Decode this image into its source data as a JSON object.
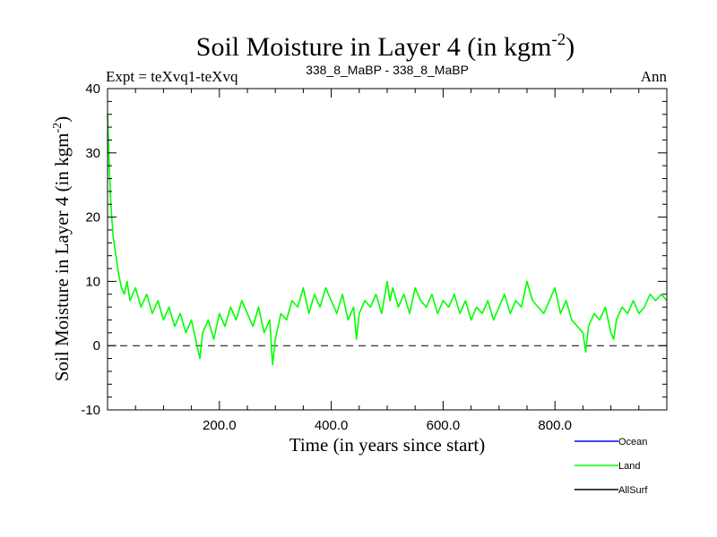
{
  "chart_data": {
    "type": "line",
    "title": "Soil Moisture in Layer 4 (in kgm",
    "title_sup": "-2",
    "title_close": ")",
    "subtitle_left": "Expt = teXvq1-teXvq",
    "subtitle_center": "338_8_MaBP - 338_8_MaBP",
    "subtitle_right": "Ann",
    "xlabel": "Time (in years since start)",
    "ylabel": "Soil Moisture in Layer 4 (in kgm",
    "ylabel_sup": "-2",
    "ylabel_close": ")",
    "xlim": [
      0,
      1000
    ],
    "ylim": [
      -10,
      40
    ],
    "x_ticks": [
      200,
      400,
      600,
      800
    ],
    "x_tick_labels": [
      "200.0",
      "400.0",
      "600.0",
      "800.0"
    ],
    "y_ticks": [
      -10,
      0,
      10,
      20,
      30,
      40
    ],
    "y_tick_labels": [
      "-10",
      "0",
      "10",
      "20",
      "30",
      "40"
    ],
    "zero_line": 0,
    "legend": [
      {
        "name": "Ocean",
        "color": "#0000ff"
      },
      {
        "name": "Land",
        "color": "#00ff00"
      },
      {
        "name": "AllSurf",
        "color": "#000000"
      }
    ],
    "series": [
      {
        "name": "Land",
        "color": "#00ff00",
        "x": [
          0,
          3,
          6,
          10,
          15,
          20,
          25,
          30,
          35,
          40,
          50,
          60,
          70,
          80,
          90,
          100,
          110,
          120,
          130,
          140,
          150,
          160,
          165,
          170,
          180,
          190,
          200,
          210,
          220,
          230,
          240,
          250,
          260,
          270,
          280,
          290,
          295,
          300,
          310,
          320,
          330,
          340,
          350,
          360,
          370,
          380,
          390,
          400,
          410,
          420,
          430,
          440,
          445,
          450,
          460,
          470,
          480,
          490,
          500,
          505,
          510,
          520,
          530,
          540,
          550,
          560,
          570,
          580,
          590,
          600,
          610,
          620,
          630,
          640,
          650,
          660,
          670,
          680,
          690,
          700,
          710,
          720,
          730,
          740,
          750,
          760,
          770,
          780,
          790,
          800,
          810,
          820,
          830,
          840,
          850,
          855,
          860,
          870,
          880,
          890,
          900,
          905,
          910,
          920,
          930,
          940,
          950,
          960,
          970,
          980,
          990,
          1000
        ],
        "values": [
          36,
          28,
          22,
          17,
          14,
          11,
          9,
          8,
          10,
          7,
          9,
          6,
          8,
          5,
          7,
          4,
          6,
          3,
          5,
          2,
          4,
          0,
          -2,
          2,
          4,
          1,
          5,
          3,
          6,
          4,
          7,
          5,
          3,
          6,
          2,
          4,
          -3,
          1,
          5,
          4,
          7,
          6,
          9,
          5,
          8,
          6,
          9,
          7,
          5,
          8,
          4,
          6,
          1,
          5,
          7,
          6,
          8,
          5,
          10,
          7,
          9,
          6,
          8,
          5,
          9,
          7,
          6,
          8,
          5,
          7,
          6,
          8,
          5,
          7,
          4,
          6,
          5,
          7,
          4,
          6,
          8,
          5,
          7,
          6,
          10,
          7,
          6,
          5,
          7,
          9,
          5,
          7,
          4,
          3,
          2,
          -1,
          3,
          5,
          4,
          6,
          2,
          1,
          4,
          6,
          5,
          7,
          5,
          6,
          8,
          7,
          8,
          7
        ]
      }
    ]
  }
}
